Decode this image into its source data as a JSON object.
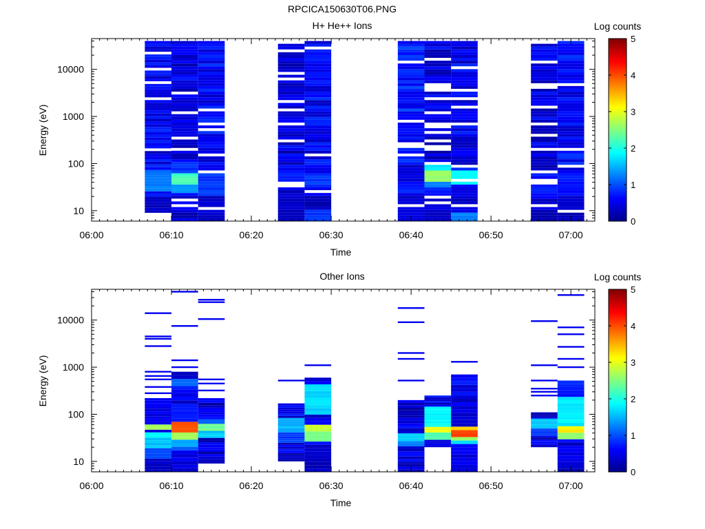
{
  "title": "RPCICA150630T06.PNG",
  "colors": {
    "colormap": [
      "#00008a",
      "#0000ff",
      "#0080ff",
      "#00ffff",
      "#80ff80",
      "#ffff00",
      "#ff8000",
      "#ff0000",
      "#800000"
    ],
    "background": "#ffffff",
    "axes": "#000000"
  },
  "chart_data": [
    {
      "type": "heatmap",
      "title": "H+ He++ Ions",
      "xlabel": "Time",
      "ylabel": "Energy (eV)",
      "colorbar_label": "Log counts",
      "x_ticks": [
        "06:00",
        "06:10",
        "06:20",
        "06:30",
        "06:40",
        "06:50",
        "07:00"
      ],
      "y_ticks": [
        "10",
        "100",
        "1000",
        "10000"
      ],
      "colorbar_ticks": [
        "0",
        "1",
        "2",
        "3",
        "4",
        "5"
      ],
      "xlim": [
        "06:00",
        "07:03"
      ],
      "ylim": [
        6,
        45000
      ],
      "y_scale": "log",
      "clim": [
        0,
        5
      ],
      "columns": [
        {
          "start": "06:06:40",
          "end": "06:10:00",
          "emin": 9,
          "emax": 40000,
          "base": 0.55,
          "gaps": [
            200,
            2500,
            5500
          ],
          "features": [
            {
              "emin": 25,
              "emax": 70,
              "value": 1.2
            },
            {
              "emin": 9,
              "emax": 20,
              "value": 0.3
            }
          ]
        },
        {
          "start": "06:10:00",
          "end": "06:13:20",
          "emin": 6,
          "emax": 40000,
          "base": 0.45,
          "gaps": [
            350,
            1200,
            3000
          ],
          "features": [
            {
              "emin": 35,
              "emax": 60,
              "value": 2.2
            },
            {
              "emin": 25,
              "emax": 35,
              "value": 1.3
            },
            {
              "emin": 60,
              "emax": 110,
              "value": 0.9
            }
          ]
        },
        {
          "start": "06:13:20",
          "end": "06:16:40",
          "emin": 6,
          "emax": 40000,
          "base": 0.6,
          "gaps": [
            70
          ],
          "features": [
            {
              "emin": 20,
              "emax": 60,
              "value": 0.9
            },
            {
              "emin": 6,
              "emax": 20,
              "value": 0.35
            }
          ]
        },
        {
          "start": "06:23:20",
          "end": "06:26:40",
          "emin": 6,
          "emax": 40000,
          "base": 0.45,
          "gaps": [
            40,
            300,
            700,
            2000,
            6000,
            25000
          ],
          "features": [
            {
              "emin": 6,
              "emax": 20,
              "value": 0.3
            },
            {
              "emin": 40,
              "emax": 70,
              "value": 0.8
            }
          ]
        },
        {
          "start": "06:26:40",
          "end": "06:30:00",
          "emin": 6,
          "emax": 40000,
          "base": 0.6,
          "gaps": [],
          "features": [
            {
              "emin": 6,
              "emax": 10,
              "value": 0.9
            },
            {
              "emin": 10,
              "emax": 20,
              "value": 0.25
            },
            {
              "emin": 30,
              "emax": 60,
              "value": 0.9
            }
          ]
        },
        {
          "start": "06:38:20",
          "end": "06:41:40",
          "emin": 6,
          "emax": 40000,
          "base": 0.75,
          "gaps": [
            250
          ],
          "features": [
            {
              "emin": 40,
              "emax": 90,
              "value": 0.4
            },
            {
              "emin": 6,
              "emax": 20,
              "value": 0.4
            }
          ]
        },
        {
          "start": "06:41:40",
          "end": "06:45:00",
          "emin": 6,
          "emax": 40000,
          "base": 0.45,
          "gaps": [
            15,
            100,
            300,
            700,
            1200,
            2500,
            5000,
            16000
          ],
          "features": [
            {
              "emin": 40,
              "emax": 70,
              "value": 2.6
            },
            {
              "emin": 30,
              "emax": 40,
              "value": 1.3
            },
            {
              "emin": 70,
              "emax": 110,
              "value": 1.8
            },
            {
              "emin": 25,
              "emax": 30,
              "value": 0.8
            },
            {
              "emin": 6,
              "emax": 10,
              "value": 0.25
            }
          ]
        },
        {
          "start": "06:45:00",
          "end": "06:48:20",
          "emin": 6,
          "emax": 40000,
          "base": 0.55,
          "gaps": [
            12,
            700,
            1500,
            3500
          ],
          "features": [
            {
              "emin": 35,
              "emax": 70,
              "value": 1.9
            },
            {
              "emin": 6,
              "emax": 9,
              "value": 1.3
            },
            {
              "emin": 20,
              "emax": 35,
              "value": 0.5
            }
          ]
        },
        {
          "start": "06:55:00",
          "end": "06:58:20",
          "emin": 6,
          "emax": 40000,
          "base": 0.45,
          "gaps": [
            12,
            200,
            700,
            1500,
            4500,
            14000,
            35000
          ],
          "features": [
            {
              "emin": 6,
              "emax": 10,
              "value": 0.25
            },
            {
              "emin": 20,
              "emax": 60,
              "value": 0.7
            }
          ]
        },
        {
          "start": "06:58:20",
          "end": "07:01:40",
          "emin": 6,
          "emax": 40000,
          "base": 0.6,
          "gaps": [],
          "features": [
            {
              "emin": 6,
              "emax": 15,
              "value": 0.3
            },
            {
              "emin": 20,
              "emax": 60,
              "value": 0.7
            }
          ]
        }
      ]
    },
    {
      "type": "heatmap",
      "title": "Other Ions",
      "xlabel": "Time",
      "ylabel": "Energy (eV)",
      "colorbar_label": "Log counts",
      "x_ticks": [
        "06:00",
        "06:10",
        "06:20",
        "06:30",
        "06:40",
        "06:50",
        "07:00"
      ],
      "y_ticks": [
        "10",
        "100",
        "1000",
        "10000"
      ],
      "colorbar_ticks": [
        "0",
        "1",
        "2",
        "3",
        "4",
        "5"
      ],
      "xlim": [
        "06:00",
        "07:03"
      ],
      "ylim": [
        6,
        45000
      ],
      "y_scale": "log",
      "clim": [
        0,
        5
      ],
      "columns": [
        {
          "start": "06:06:40",
          "end": "06:10:00",
          "emin": 6,
          "emax": 220,
          "base": 0.45,
          "features": [
            {
              "emin": 50,
              "emax": 60,
              "value": 2.7
            },
            {
              "emin": 30,
              "emax": 40,
              "value": 1.9
            },
            {
              "emin": 20,
              "emax": 30,
              "value": 1.6
            },
            {
              "emin": 12,
              "emax": 20,
              "value": 0.9
            },
            {
              "emin": 6,
              "emax": 12,
              "value": 0.3
            }
          ],
          "lines": [
            14000,
            4500,
            4000,
            2800,
            800,
            650,
            550,
            380,
            280,
            210
          ]
        },
        {
          "start": "06:10:00",
          "end": "06:13:20",
          "emin": 6,
          "emax": 800,
          "base": 0.5,
          "features": [
            {
              "emin": 40,
              "emax": 65,
              "value": 4.0
            },
            {
              "emin": 30,
              "emax": 40,
              "value": 2.7
            },
            {
              "emin": 22,
              "emax": 30,
              "value": 1.5
            },
            {
              "emin": 16,
              "emax": 22,
              "value": 1.1
            },
            {
              "emin": 380,
              "emax": 520,
              "value": 1.2
            }
          ],
          "lines": [
            40000,
            7500,
            1400,
            1000
          ]
        },
        {
          "start": "06:13:20",
          "end": "06:16:40",
          "emin": 9,
          "emax": 220,
          "base": 0.4,
          "features": [
            {
              "emin": 45,
              "emax": 60,
              "value": 2.4
            },
            {
              "emin": 30,
              "emax": 45,
              "value": 1.6
            },
            {
              "emin": 60,
              "emax": 80,
              "value": 1.1
            }
          ],
          "lines": [
            27000,
            24000,
            10500,
            550,
            450,
            320
          ]
        },
        {
          "start": "06:23:20",
          "end": "06:26:40",
          "emin": 10,
          "emax": 170,
          "base": 0.5,
          "features": [
            {
              "emin": 40,
              "emax": 80,
              "value": 1.5
            },
            {
              "emin": 25,
              "emax": 40,
              "value": 0.9
            },
            {
              "emin": 10,
              "emax": 15,
              "value": 0.25
            }
          ],
          "lines": [
            520
          ]
        },
        {
          "start": "06:26:40",
          "end": "06:30:00",
          "emin": 6,
          "emax": 600,
          "base": 0.55,
          "features": [
            {
              "emin": 40,
              "emax": 60,
              "value": 2.8
            },
            {
              "emin": 28,
              "emax": 40,
              "value": 2.4
            },
            {
              "emin": 100,
              "emax": 400,
              "value": 1.7
            },
            {
              "emin": 6,
              "emax": 20,
              "value": 0.3
            }
          ],
          "lines": [
            1100
          ]
        },
        {
          "start": "06:38:20",
          "end": "06:41:40",
          "emin": 6,
          "emax": 200,
          "base": 0.4,
          "features": [
            {
              "emin": 28,
              "emax": 40,
              "value": 1.7
            },
            {
              "emin": 22,
              "emax": 28,
              "value": 1.3
            }
          ],
          "lines": [
            18000,
            9000,
            2000,
            1500,
            520
          ]
        },
        {
          "start": "06:41:40",
          "end": "06:45:00",
          "emin": 20,
          "emax": 250,
          "base": 0.5,
          "features": [
            {
              "emin": 40,
              "emax": 55,
              "value": 3.0
            },
            {
              "emin": 30,
              "emax": 40,
              "value": 2.3
            },
            {
              "emin": 55,
              "emax": 150,
              "value": 1.9
            }
          ],
          "lines": []
        },
        {
          "start": "06:45:00",
          "end": "06:48:20",
          "emin": 6,
          "emax": 700,
          "base": 0.5,
          "features": [
            {
              "emin": 35,
              "emax": 45,
              "value": 4.1
            },
            {
              "emin": 45,
              "emax": 55,
              "value": 3.4
            },
            {
              "emin": 28,
              "emax": 35,
              "value": 2.6
            },
            {
              "emin": 22,
              "emax": 28,
              "value": 1.8
            }
          ],
          "lines": [
            1300
          ]
        },
        {
          "start": "06:55:00",
          "end": "06:58:20",
          "emin": 20,
          "emax": 110,
          "base": 0.45,
          "features": [
            {
              "emin": 50,
              "emax": 80,
              "value": 1.6
            },
            {
              "emin": 35,
              "emax": 50,
              "value": 0.9
            }
          ],
          "lines": [
            9500,
            1100,
            520,
            350,
            300,
            250
          ]
        },
        {
          "start": "06:58:20",
          "end": "07:01:40",
          "emin": 6,
          "emax": 520,
          "base": 0.55,
          "features": [
            {
              "emin": 40,
              "emax": 55,
              "value": 3.2
            },
            {
              "emin": 28,
              "emax": 40,
              "value": 2.6
            },
            {
              "emin": 55,
              "emax": 250,
              "value": 1.8
            },
            {
              "emin": 6,
              "emax": 10,
              "value": 0.3
            }
          ],
          "lines": [
            34000,
            7000,
            5000,
            2700,
            1500,
            1000
          ]
        }
      ]
    }
  ]
}
